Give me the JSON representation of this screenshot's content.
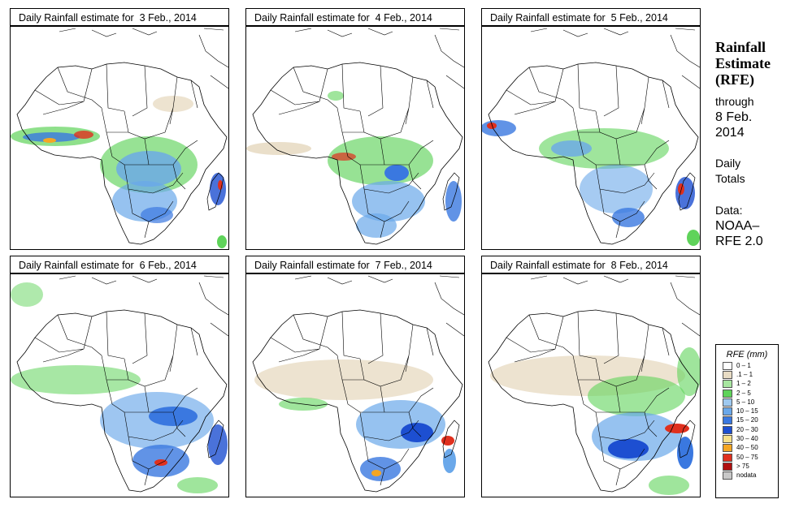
{
  "panels": [
    {
      "title": "Daily Rainfall estimate for  3 Feb., 2014",
      "date": "3 Feb., 2014"
    },
    {
      "title": "Daily Rainfall estimate for  4 Feb., 2014",
      "date": "4 Feb., 2014"
    },
    {
      "title": "Daily Rainfall estimate for  5 Feb., 2014",
      "date": "5 Feb., 2014"
    },
    {
      "title": "Daily Rainfall estimate for  6 Feb., 2014",
      "date": "6 Feb., 2014"
    },
    {
      "title": "Daily Rainfall estimate for  7 Feb., 2014",
      "date": "7 Feb., 2014"
    },
    {
      "title": "Daily Rainfall estimate for  8 Feb., 2014",
      "date": "8 Feb., 2014"
    }
  ],
  "sidebar": {
    "title_line1": "Rainfall",
    "title_line2": "Estimate",
    "title_line3": "(RFE)",
    "through": "through",
    "through_date_line1": "8 Feb.",
    "through_date_line2": "2014",
    "totals_line1": "Daily",
    "totals_line2": "Totals",
    "data_line1": "Data:",
    "data_line2": "NOAA–",
    "data_line3": "RFE 2.0"
  },
  "legend": {
    "title": "RFE (mm)",
    "items": [
      {
        "label": "0 – 1",
        "color": "#ffffff"
      },
      {
        "label": ".1 – 1",
        "color": "#e8dcc4"
      },
      {
        "label": "1 – 2",
        "color": "#a8e6a0"
      },
      {
        "label": "2 – 5",
        "color": "#5fd35a"
      },
      {
        "label": "5 – 10",
        "color": "#9ec9f0"
      },
      {
        "label": "10 – 15",
        "color": "#6aa8ea"
      },
      {
        "label": "15 – 20",
        "color": "#3a78e0"
      },
      {
        "label": "20 – 30",
        "color": "#1d4fd1"
      },
      {
        "label": "30 – 40",
        "color": "#f7e08a"
      },
      {
        "label": "40 – 50",
        "color": "#f5a623"
      },
      {
        "label": "50 – 75",
        "color": "#e0301e"
      },
      {
        "label": "> 75",
        "color": "#b01010"
      },
      {
        "label": "nodata",
        "color": "#c8c8c8"
      }
    ]
  }
}
